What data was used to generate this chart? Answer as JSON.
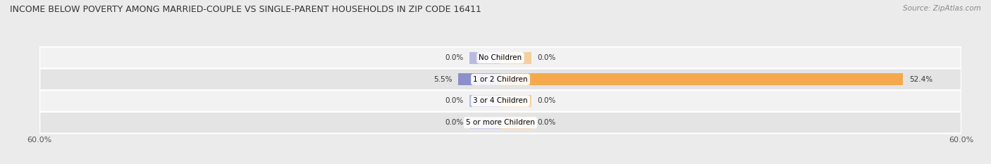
{
  "title": "INCOME BELOW POVERTY AMONG MARRIED-COUPLE VS SINGLE-PARENT HOUSEHOLDS IN ZIP CODE 16411",
  "source": "Source: ZipAtlas.com",
  "categories": [
    "No Children",
    "1 or 2 Children",
    "3 or 4 Children",
    "5 or more Children"
  ],
  "married_values": [
    0.0,
    5.5,
    0.0,
    0.0
  ],
  "single_values": [
    0.0,
    52.4,
    0.0,
    0.0
  ],
  "married_color": "#8b8fcc",
  "single_color": "#f5a94e",
  "married_stub_color": "#b8bce0",
  "single_stub_color": "#f5cfa0",
  "axis_limit": 60.0,
  "stub_value": 4.0,
  "bar_height": 0.55,
  "background_color": "#ebebeb",
  "row_bg_even": "#f2f2f2",
  "row_bg_odd": "#e4e4e4",
  "title_fontsize": 9,
  "source_fontsize": 7.5,
  "legend_fontsize": 8,
  "axis_label_fontsize": 8,
  "value_label_fontsize": 7.5,
  "cat_label_fontsize": 7.5
}
